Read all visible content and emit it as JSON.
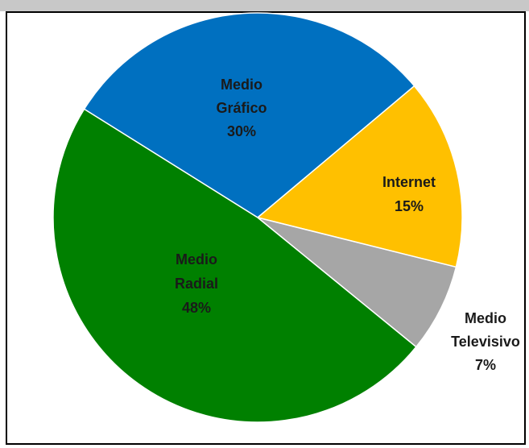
{
  "chart_data": {
    "type": "pie",
    "slices": [
      {
        "label_lines": [
          "Medio",
          "Gráfico"
        ],
        "pct_label": "30%",
        "value": 30,
        "color": "#0070c0"
      },
      {
        "label_lines": [
          "Internet"
        ],
        "pct_label": "15%",
        "value": 15,
        "color": "#ffc000"
      },
      {
        "label_lines": [
          "Medio",
          "Televisivo"
        ],
        "pct_label": "7%",
        "value": 7,
        "color": "#a6a6a6"
      },
      {
        "label_lines": [
          "Medio",
          "Radial"
        ],
        "pct_label": "48%",
        "value": 48,
        "color": "#008000"
      }
    ]
  }
}
